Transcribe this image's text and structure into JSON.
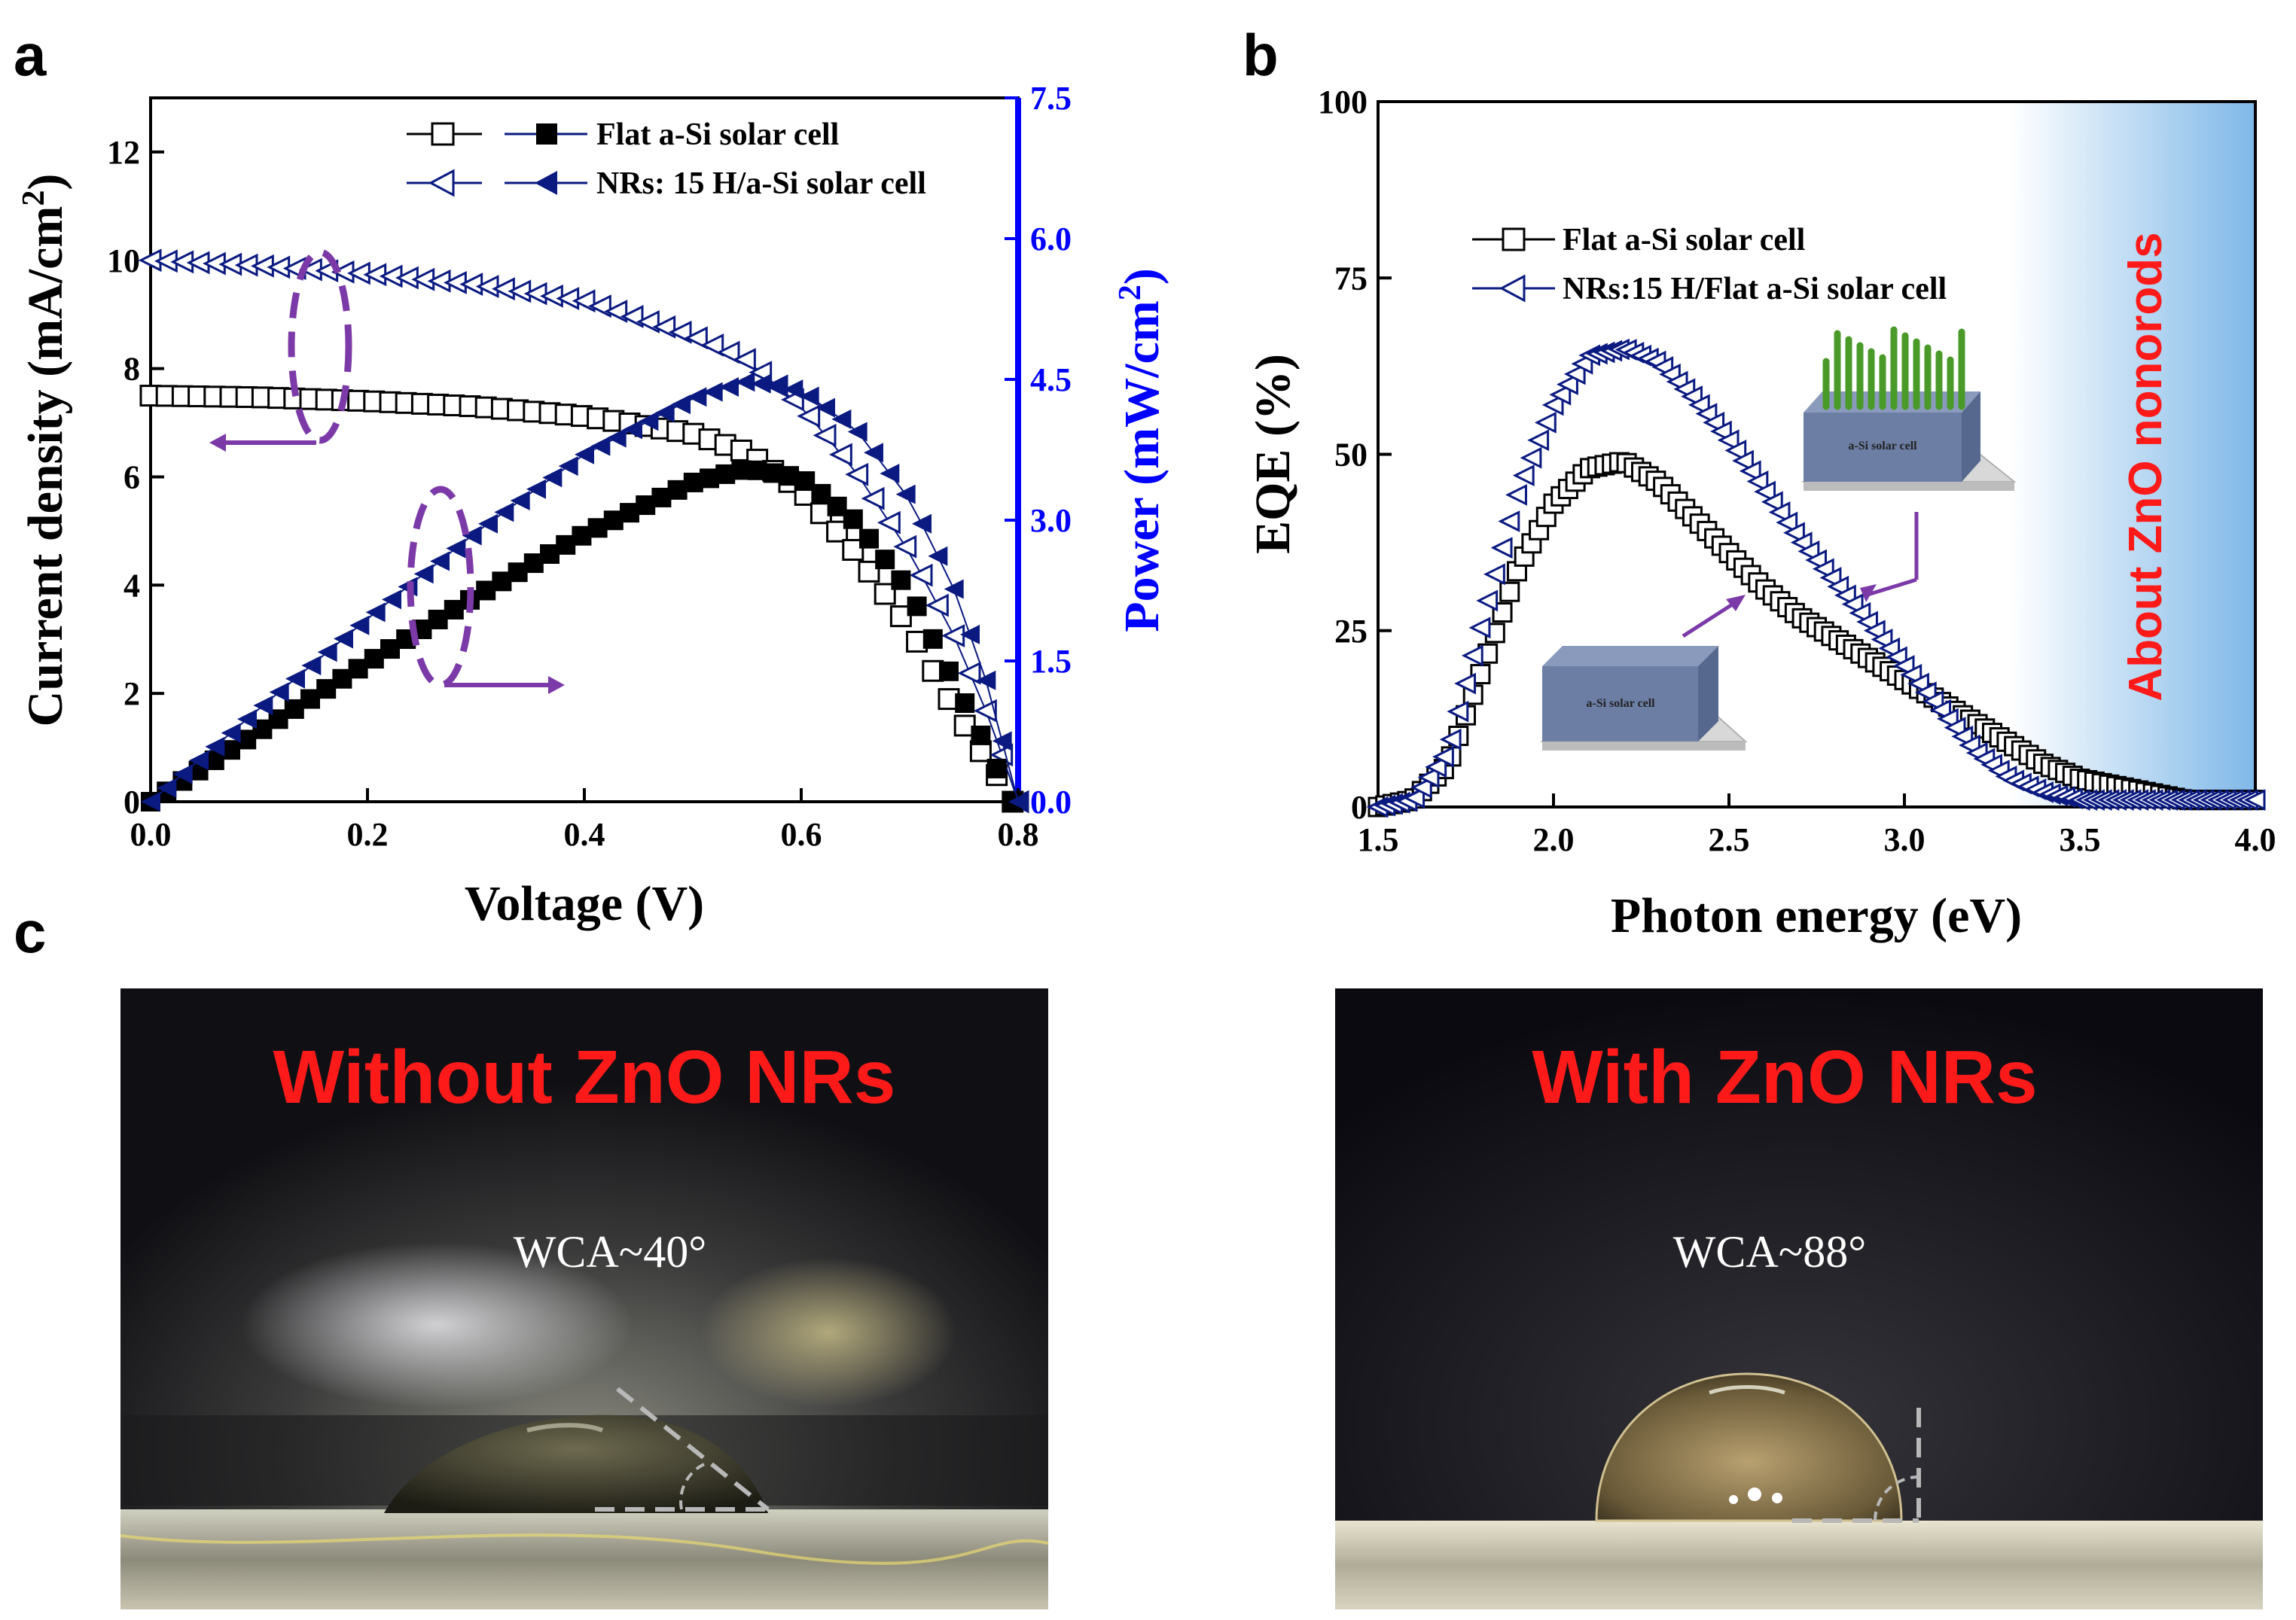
{
  "panel_labels": {
    "a": "a",
    "b": "b",
    "c": "c"
  },
  "colors": {
    "black": "#000000",
    "navy": "#0a1a80",
    "blue": "#0000ff",
    "red": "#ff1a1a",
    "purple": "#7b3aa8",
    "band": "#7fb8e8"
  },
  "chart_data": [
    {
      "id": "a",
      "type": "scatter",
      "xlabel": "Voltage (V)",
      "ylabel": "Current density (mA/cm²)",
      "ylabel_main": "Current density (mA/cm",
      "ylabel_sup": "2",
      "ylabel_end": ")",
      "y2label_main": "Power (mW/cm",
      "y2label_sup": "2",
      "y2label_end": ")",
      "xlim": [
        0.0,
        0.8
      ],
      "ylim": [
        0,
        13
      ],
      "y2lim": [
        0.0,
        7.5
      ],
      "xticks": [
        "0.0",
        "0.2",
        "0.4",
        "0.6",
        "0.8"
      ],
      "yticks": [
        "0",
        "2",
        "4",
        "6",
        "8",
        "10",
        "12"
      ],
      "y2ticks": [
        "0.0",
        "1.5",
        "3.0",
        "4.5",
        "6.0",
        "7.5"
      ],
      "legend": [
        {
          "label": "Flat a-Si solar cell",
          "open": "square",
          "filled": "square"
        },
        {
          "label": "NRs: 15 H/a-Si solar cell",
          "open": "triangle-left",
          "filled": "triangle-left"
        }
      ],
      "series": [
        {
          "name": "Flat a-Si J-V",
          "axis": "left",
          "marker": "square-open",
          "x": [
            0.0,
            0.1,
            0.2,
            0.3,
            0.4,
            0.5,
            0.55,
            0.6,
            0.65,
            0.7,
            0.73,
            0.76,
            0.78,
            0.795
          ],
          "y": [
            7.5,
            7.47,
            7.4,
            7.3,
            7.12,
            6.8,
            6.45,
            5.75,
            4.6,
            3.2,
            2.1,
            1.1,
            0.5,
            0.0
          ]
        },
        {
          "name": "NRs: 15 H J-V",
          "axis": "left",
          "marker": "triangle-open",
          "x": [
            0.0,
            0.1,
            0.2,
            0.3,
            0.4,
            0.5,
            0.55,
            0.6,
            0.65,
            0.7,
            0.74,
            0.77,
            0.79,
            0.8
          ],
          "y": [
            10.0,
            9.9,
            9.75,
            9.55,
            9.25,
            8.6,
            8.15,
            7.3,
            6.1,
            4.6,
            3.1,
            1.7,
            0.6,
            0.0
          ]
        },
        {
          "name": "Flat a-Si Power",
          "axis": "right",
          "marker": "square-filled",
          "x": [
            0.0,
            0.1,
            0.2,
            0.3,
            0.4,
            0.5,
            0.55,
            0.6,
            0.65,
            0.7,
            0.73,
            0.76,
            0.795
          ],
          "y": [
            0.0,
            0.75,
            1.48,
            2.19,
            2.85,
            3.4,
            3.55,
            3.45,
            2.99,
            2.24,
            1.53,
            0.84,
            0.0
          ]
        },
        {
          "name": "NRs: 15 H Power",
          "axis": "right",
          "marker": "triangle-filled",
          "x": [
            0.0,
            0.1,
            0.2,
            0.3,
            0.4,
            0.5,
            0.55,
            0.6,
            0.65,
            0.7,
            0.74,
            0.77,
            0.8
          ],
          "y": [
            0.0,
            0.99,
            1.95,
            2.87,
            3.7,
            4.3,
            4.48,
            4.38,
            3.97,
            3.22,
            2.29,
            1.31,
            0.0
          ]
        }
      ]
    },
    {
      "id": "b",
      "type": "scatter",
      "xlabel": "Photon energy (eV)",
      "ylabel": "EQE (%)",
      "xlim": [
        1.5,
        4.0
      ],
      "ylim": [
        0,
        100
      ],
      "xticks": [
        "1.5",
        "2.0",
        "2.5",
        "3.0",
        "3.5",
        "4.0"
      ],
      "yticks": [
        "0",
        "25",
        "50",
        "75",
        "100"
      ],
      "band_label": "About ZnO nonorods",
      "band_range": [
        3.3,
        4.0
      ],
      "inset_label": "a-Si solar cell",
      "legend": [
        {
          "label": "Flat a-Si solar cell",
          "marker": "square"
        },
        {
          "label": "NRs:15 H/Flat a-Si solar cell",
          "marker": "triangle-left"
        }
      ],
      "series": [
        {
          "name": "Flat a-Si solar cell",
          "marker": "square-open",
          "x": [
            1.5,
            1.6,
            1.7,
            1.8,
            1.9,
            2.0,
            2.1,
            2.2,
            2.3,
            2.4,
            2.5,
            2.6,
            2.7,
            2.8,
            2.9,
            3.0,
            3.1,
            3.2,
            3.3,
            3.4,
            3.5,
            3.6,
            3.7,
            3.8,
            3.9,
            4.0
          ],
          "y": [
            0,
            1,
            6,
            20,
            34,
            43,
            48,
            49,
            46,
            41,
            36,
            31,
            27,
            24,
            21,
            18,
            15,
            12,
            9,
            6,
            4,
            3,
            2,
            1,
            1,
            1
          ]
        },
        {
          "name": "NRs:15 H/Flat a-Si solar cell",
          "marker": "triangle-open",
          "x": [
            1.5,
            1.6,
            1.7,
            1.8,
            1.9,
            2.0,
            2.1,
            2.2,
            2.3,
            2.4,
            2.5,
            2.6,
            2.7,
            2.8,
            2.9,
            3.0,
            3.1,
            3.2,
            3.3,
            3.4,
            3.5,
            3.6,
            3.7,
            3.8,
            3.9,
            4.0
          ],
          "y": [
            0,
            1,
            8,
            27,
            45,
            57,
            64,
            65,
            63,
            58,
            52,
            45,
            38,
            32,
            26,
            20,
            14,
            8,
            4,
            2,
            1,
            1,
            1,
            1,
            1,
            1
          ]
        }
      ]
    }
  ],
  "photos": {
    "left": {
      "title": "Without ZnO NRs",
      "wca": "WCA~40°"
    },
    "right": {
      "title": "With ZnO NRs",
      "wca": "WCA~88°"
    }
  }
}
